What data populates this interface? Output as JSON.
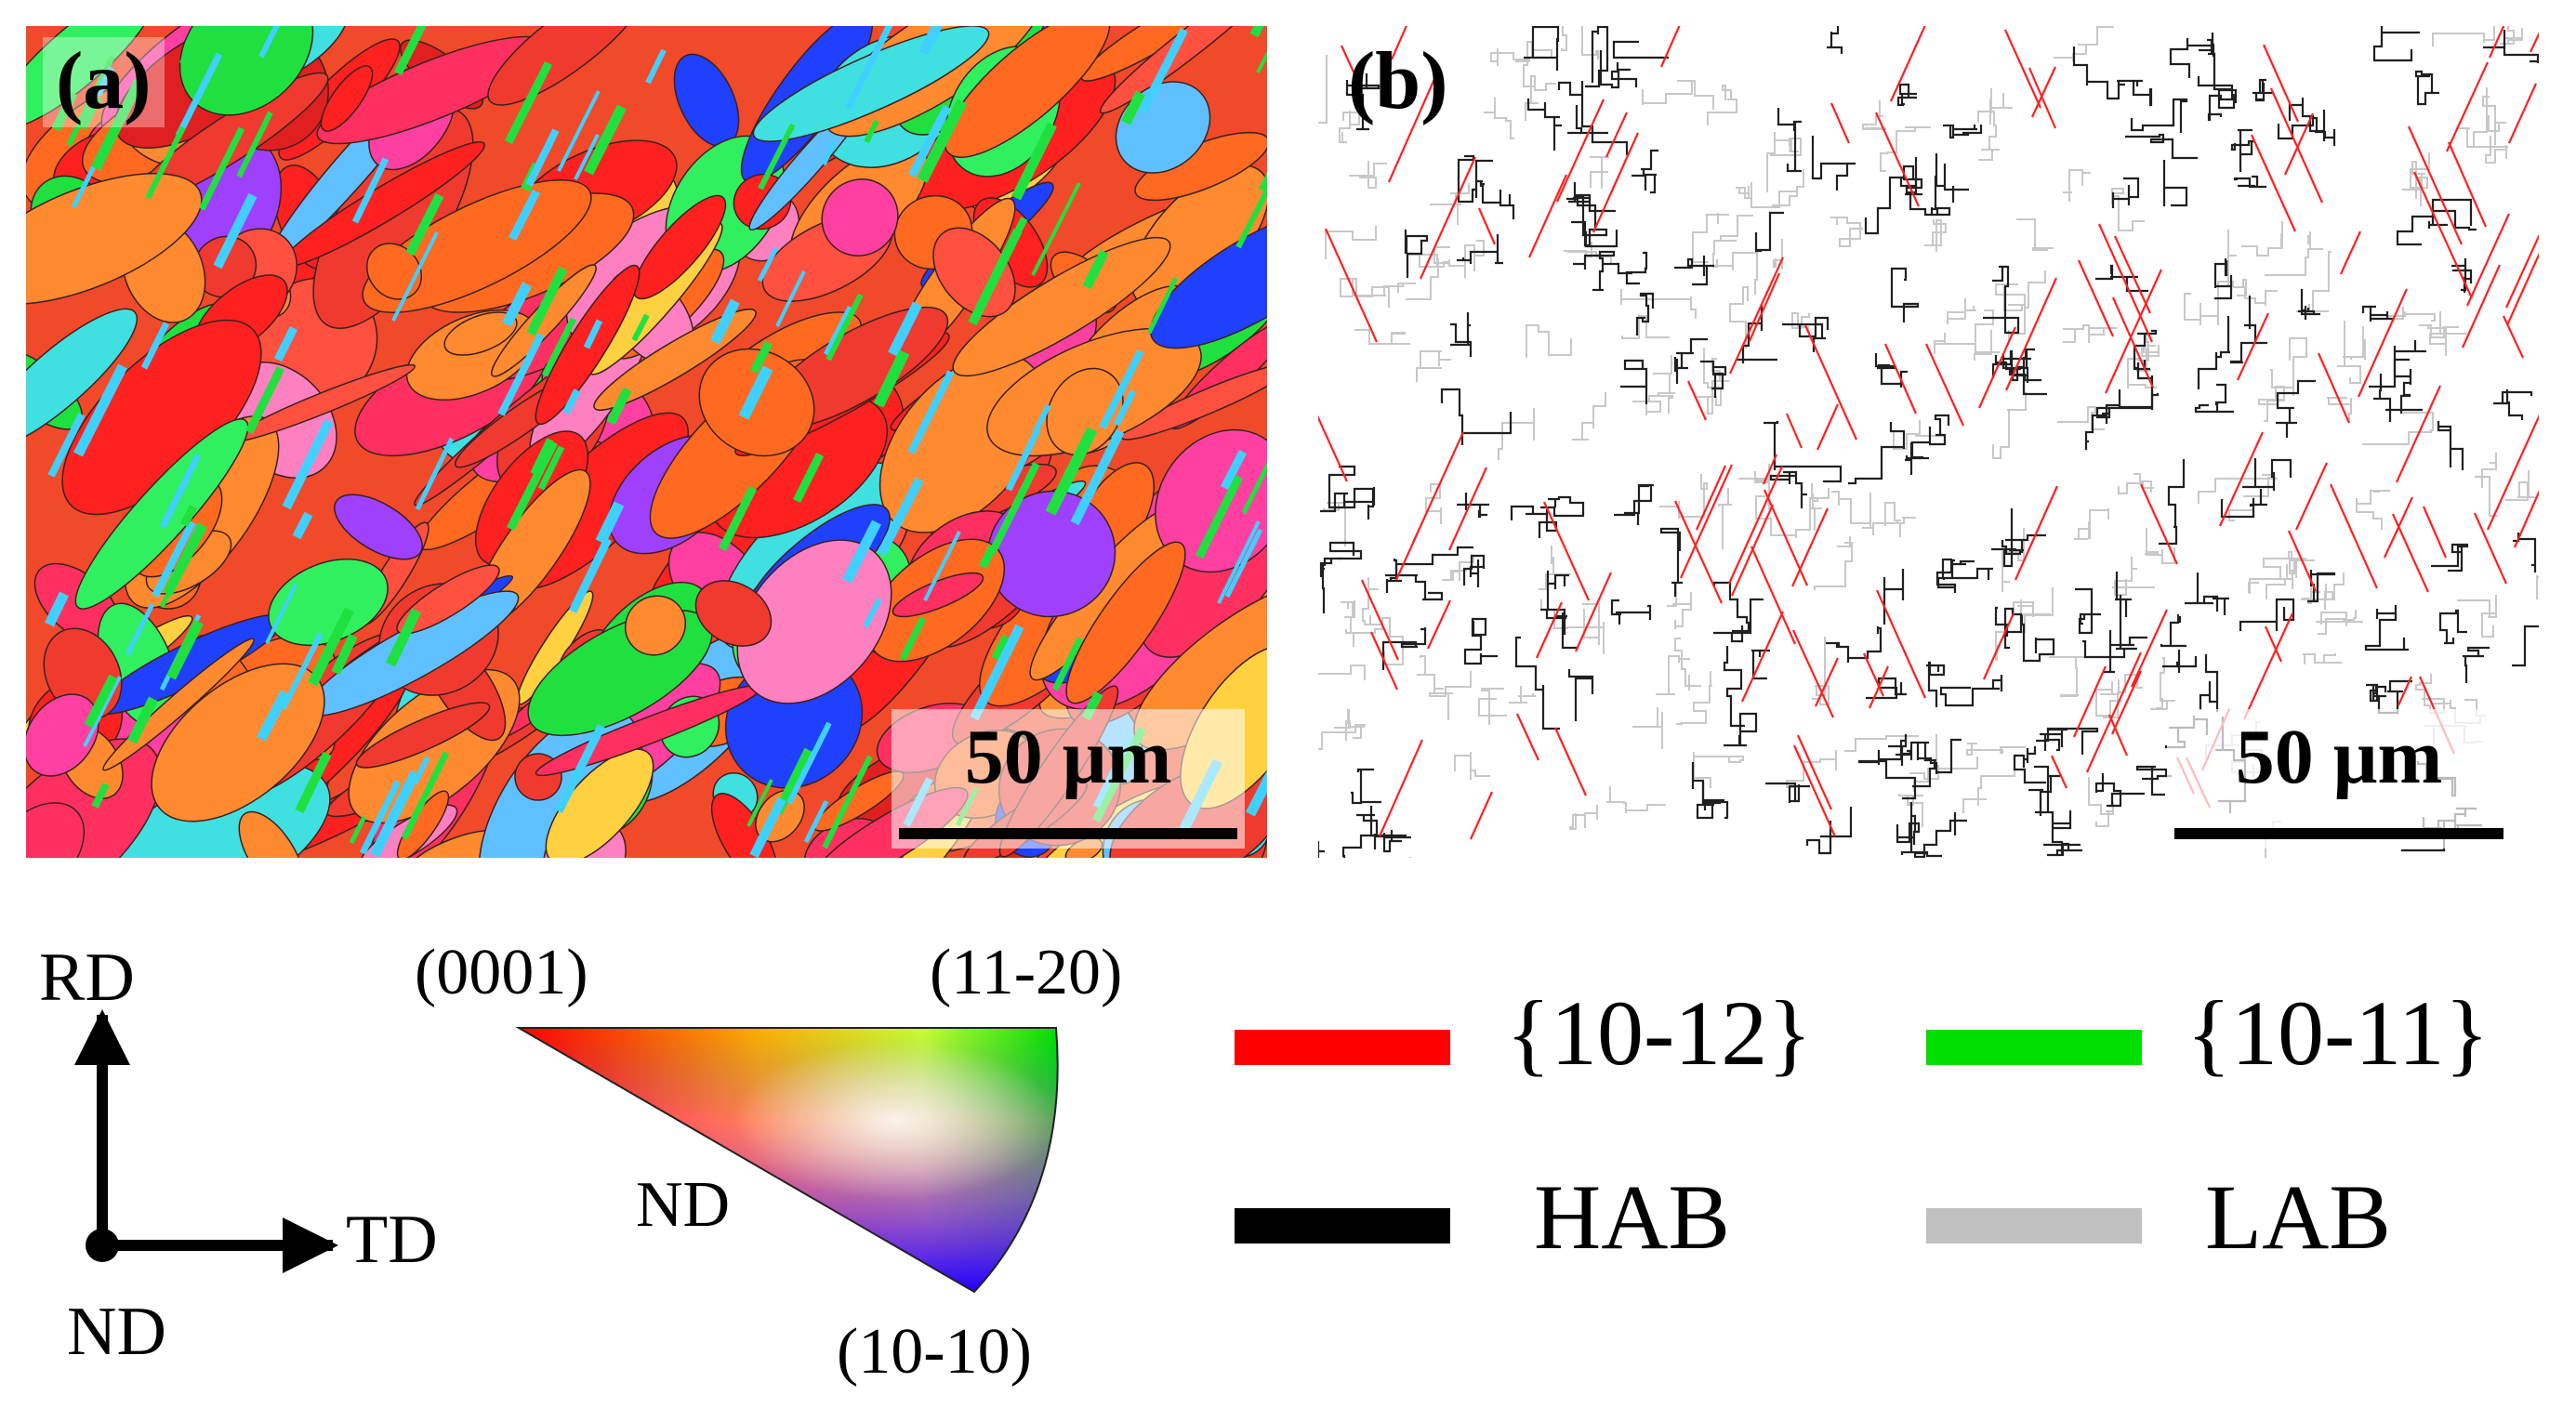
{
  "panels": {
    "a": {
      "label": "(a)",
      "scale_bar": "50 μm"
    },
    "b": {
      "label": "(b)",
      "scale_bar": "50 μm"
    }
  },
  "axes": {
    "up": "RD",
    "right": "TD",
    "origin": "ND"
  },
  "ipf": {
    "top_left": "(0001)",
    "top_right": "(11-20)",
    "bottom": "(10-10)",
    "center": "ND"
  },
  "legend": [
    {
      "label": "{10-12}",
      "color": "#ff0000"
    },
    {
      "label": "{10-11}",
      "color": "#00e000"
    },
    {
      "label": "HAB",
      "color": "#000000"
    },
    {
      "label": "LAB",
      "color": "#c0c0c0"
    }
  ]
}
